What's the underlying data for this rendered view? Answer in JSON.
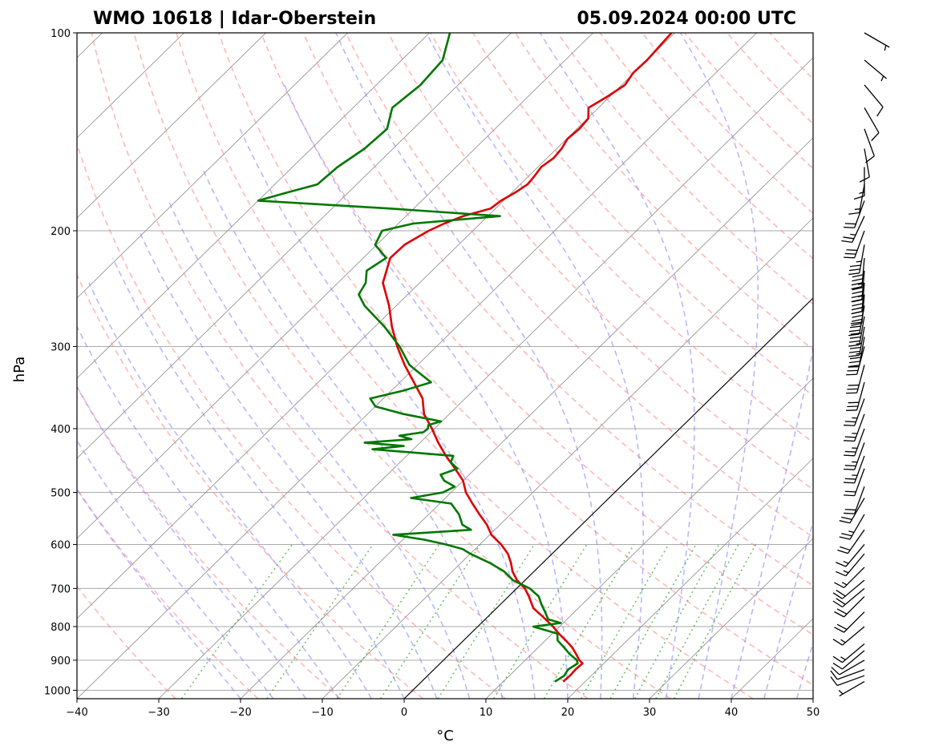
{
  "chart_data": {
    "type": "line",
    "title_left": "WMO 10618 | Idar-Oberstein",
    "title_right": "05.09.2024 00:00 UTC",
    "xlabel": "°C",
    "ylabel": "hPa",
    "xlim": [
      -40,
      50
    ],
    "ylim": [
      1030,
      100
    ],
    "x_ticks": [
      -40,
      -30,
      -20,
      -10,
      0,
      10,
      20,
      30,
      40,
      50
    ],
    "x_tick_labels": [
      "−40",
      "−30",
      "−20",
      "−10",
      "0",
      "10",
      "20",
      "30",
      "40",
      "50"
    ],
    "y_ticks": [
      100,
      200,
      300,
      400,
      500,
      600,
      700,
      800,
      900,
      1000
    ],
    "y_tick_labels": [
      "100",
      "200",
      "300",
      "400",
      "500",
      "600",
      "700",
      "800",
      "900",
      "1000"
    ],
    "log_pressure_axis": true,
    "skew_t": true,
    "grid": true,
    "colors": {
      "temperature": "#dd0000",
      "dewpoint": "#007700",
      "dry_adiabats": "#ff8888",
      "moist_adiabats": "#8888ff",
      "mixing_ratio": "#33aa33",
      "isotherms": "#888888",
      "isobars": "#aaaaaa"
    },
    "series": [
      {
        "role": "temperature",
        "pressure": [
          970,
          950,
          930,
          910,
          900,
          880,
          860,
          840,
          820,
          800,
          780,
          750,
          720,
          700,
          680,
          660,
          640,
          620,
          600,
          580,
          560,
          540,
          520,
          500,
          480,
          460,
          440,
          420,
          400,
          380,
          360,
          340,
          320,
          300,
          280,
          260,
          240,
          220,
          210,
          200,
          195,
          190,
          185,
          180,
          175,
          170,
          165,
          160,
          155,
          150,
          145,
          140,
          135,
          130,
          125,
          120,
          115,
          110,
          105,
          100
        ],
        "temp": [
          17.3,
          17.4,
          17.3,
          17.4,
          16.6,
          15.4,
          14.1,
          12.5,
          10.8,
          9.2,
          7.4,
          4.5,
          2.5,
          1.0,
          -1.0,
          -2.6,
          -3.9,
          -5.4,
          -7.4,
          -9.8,
          -11.6,
          -13.8,
          -16.0,
          -18.2,
          -20.0,
          -22.5,
          -25.2,
          -27.8,
          -30.3,
          -33.1,
          -35.2,
          -38.3,
          -41.6,
          -44.8,
          -47.9,
          -50.9,
          -54.5,
          -56.7,
          -56.6,
          -55.4,
          -54.4,
          -53.0,
          -50.6,
          -50.3,
          -49.6,
          -49.1,
          -49.3,
          -49.6,
          -49.2,
          -49.4,
          -49.9,
          -49.7,
          -49.9,
          -51.2,
          -50.3,
          -49.6,
          -50.1,
          -50.0,
          -50.2,
          -50.4
        ]
      },
      {
        "role": "dewpoint",
        "pressure": [
          970,
          950,
          930,
          910,
          900,
          880,
          860,
          840,
          820,
          800,
          790,
          780,
          760,
          740,
          720,
          700,
          680,
          660,
          640,
          620,
          610,
          600,
          590,
          580,
          570,
          560,
          540,
          520,
          510,
          500,
          490,
          480,
          470,
          460,
          450,
          440,
          430,
          425,
          420,
          415,
          410,
          405,
          400,
          395,
          390,
          380,
          370,
          360,
          350,
          340,
          330,
          320,
          300,
          280,
          260,
          250,
          240,
          230,
          220,
          210,
          200,
          195,
          190,
          185,
          180,
          175,
          170,
          160,
          150,
          140,
          130,
          120,
          110,
          100
        ],
        "dew": [
          16.3,
          16.7,
          16.4,
          16.8,
          16.3,
          14.6,
          13.1,
          11.5,
          10.6,
          6.8,
          9.7,
          7.7,
          6.4,
          5.0,
          3.7,
          1.6,
          -1.5,
          -3.6,
          -6.5,
          -10.0,
          -11.5,
          -14.2,
          -17.4,
          -21.8,
          -12.9,
          -14.6,
          -16.3,
          -18.6,
          -24.2,
          -21.0,
          -20.3,
          -22.3,
          -23.5,
          -22.2,
          -23.8,
          -24.3,
          -35.0,
          -31.6,
          -36.8,
          -31.5,
          -33.4,
          -30.9,
          -30.8,
          -31.2,
          -30.1,
          -35.6,
          -40.0,
          -41.6,
          -38.5,
          -36.2,
          -38.6,
          -41.0,
          -44.5,
          -48.8,
          -53.9,
          -56.0,
          -56.6,
          -58.0,
          -57.2,
          -60.2,
          -61.1,
          -58.2,
          -48.5,
          -63.0,
          -80.0,
          -77.5,
          -74.8,
          -74.5,
          -73.5,
          -73.2,
          -75.2,
          -74.6,
          -75.0,
          -77.5
        ]
      }
    ],
    "wind_barbs": {
      "pressure": [
        970,
        950,
        930,
        900,
        870,
        850,
        800,
        760,
        720,
        700,
        680,
        650,
        620,
        600,
        570,
        540,
        510,
        490,
        460,
        440,
        420,
        400,
        380,
        360,
        340,
        320,
        300,
        290,
        280,
        270,
        260,
        250,
        240,
        230,
        220,
        210,
        200,
        190,
        180,
        170,
        160,
        150,
        140,
        130,
        120,
        110,
        100
      ],
      "direction_deg": [
        240,
        250,
        250,
        240,
        230,
        230,
        230,
        225,
        225,
        230,
        230,
        225,
        220,
        220,
        215,
        210,
        210,
        200,
        200,
        200,
        200,
        200,
        200,
        200,
        195,
        195,
        195,
        190,
        190,
        190,
        190,
        185,
        185,
        185,
        185,
        190,
        200,
        205,
        200,
        190,
        180,
        170,
        160,
        150,
        140,
        130,
        120
      ],
      "speed_kt": [
        5,
        10,
        10,
        10,
        10,
        15,
        15,
        20,
        20,
        20,
        20,
        15,
        15,
        15,
        20,
        25,
        20,
        20,
        20,
        25,
        25,
        25,
        25,
        25,
        30,
        30,
        30,
        35,
        35,
        40,
        40,
        45,
        45,
        45,
        40,
        35,
        30,
        25,
        20,
        15,
        15,
        10,
        10,
        10,
        10,
        5,
        5
      ]
    }
  }
}
